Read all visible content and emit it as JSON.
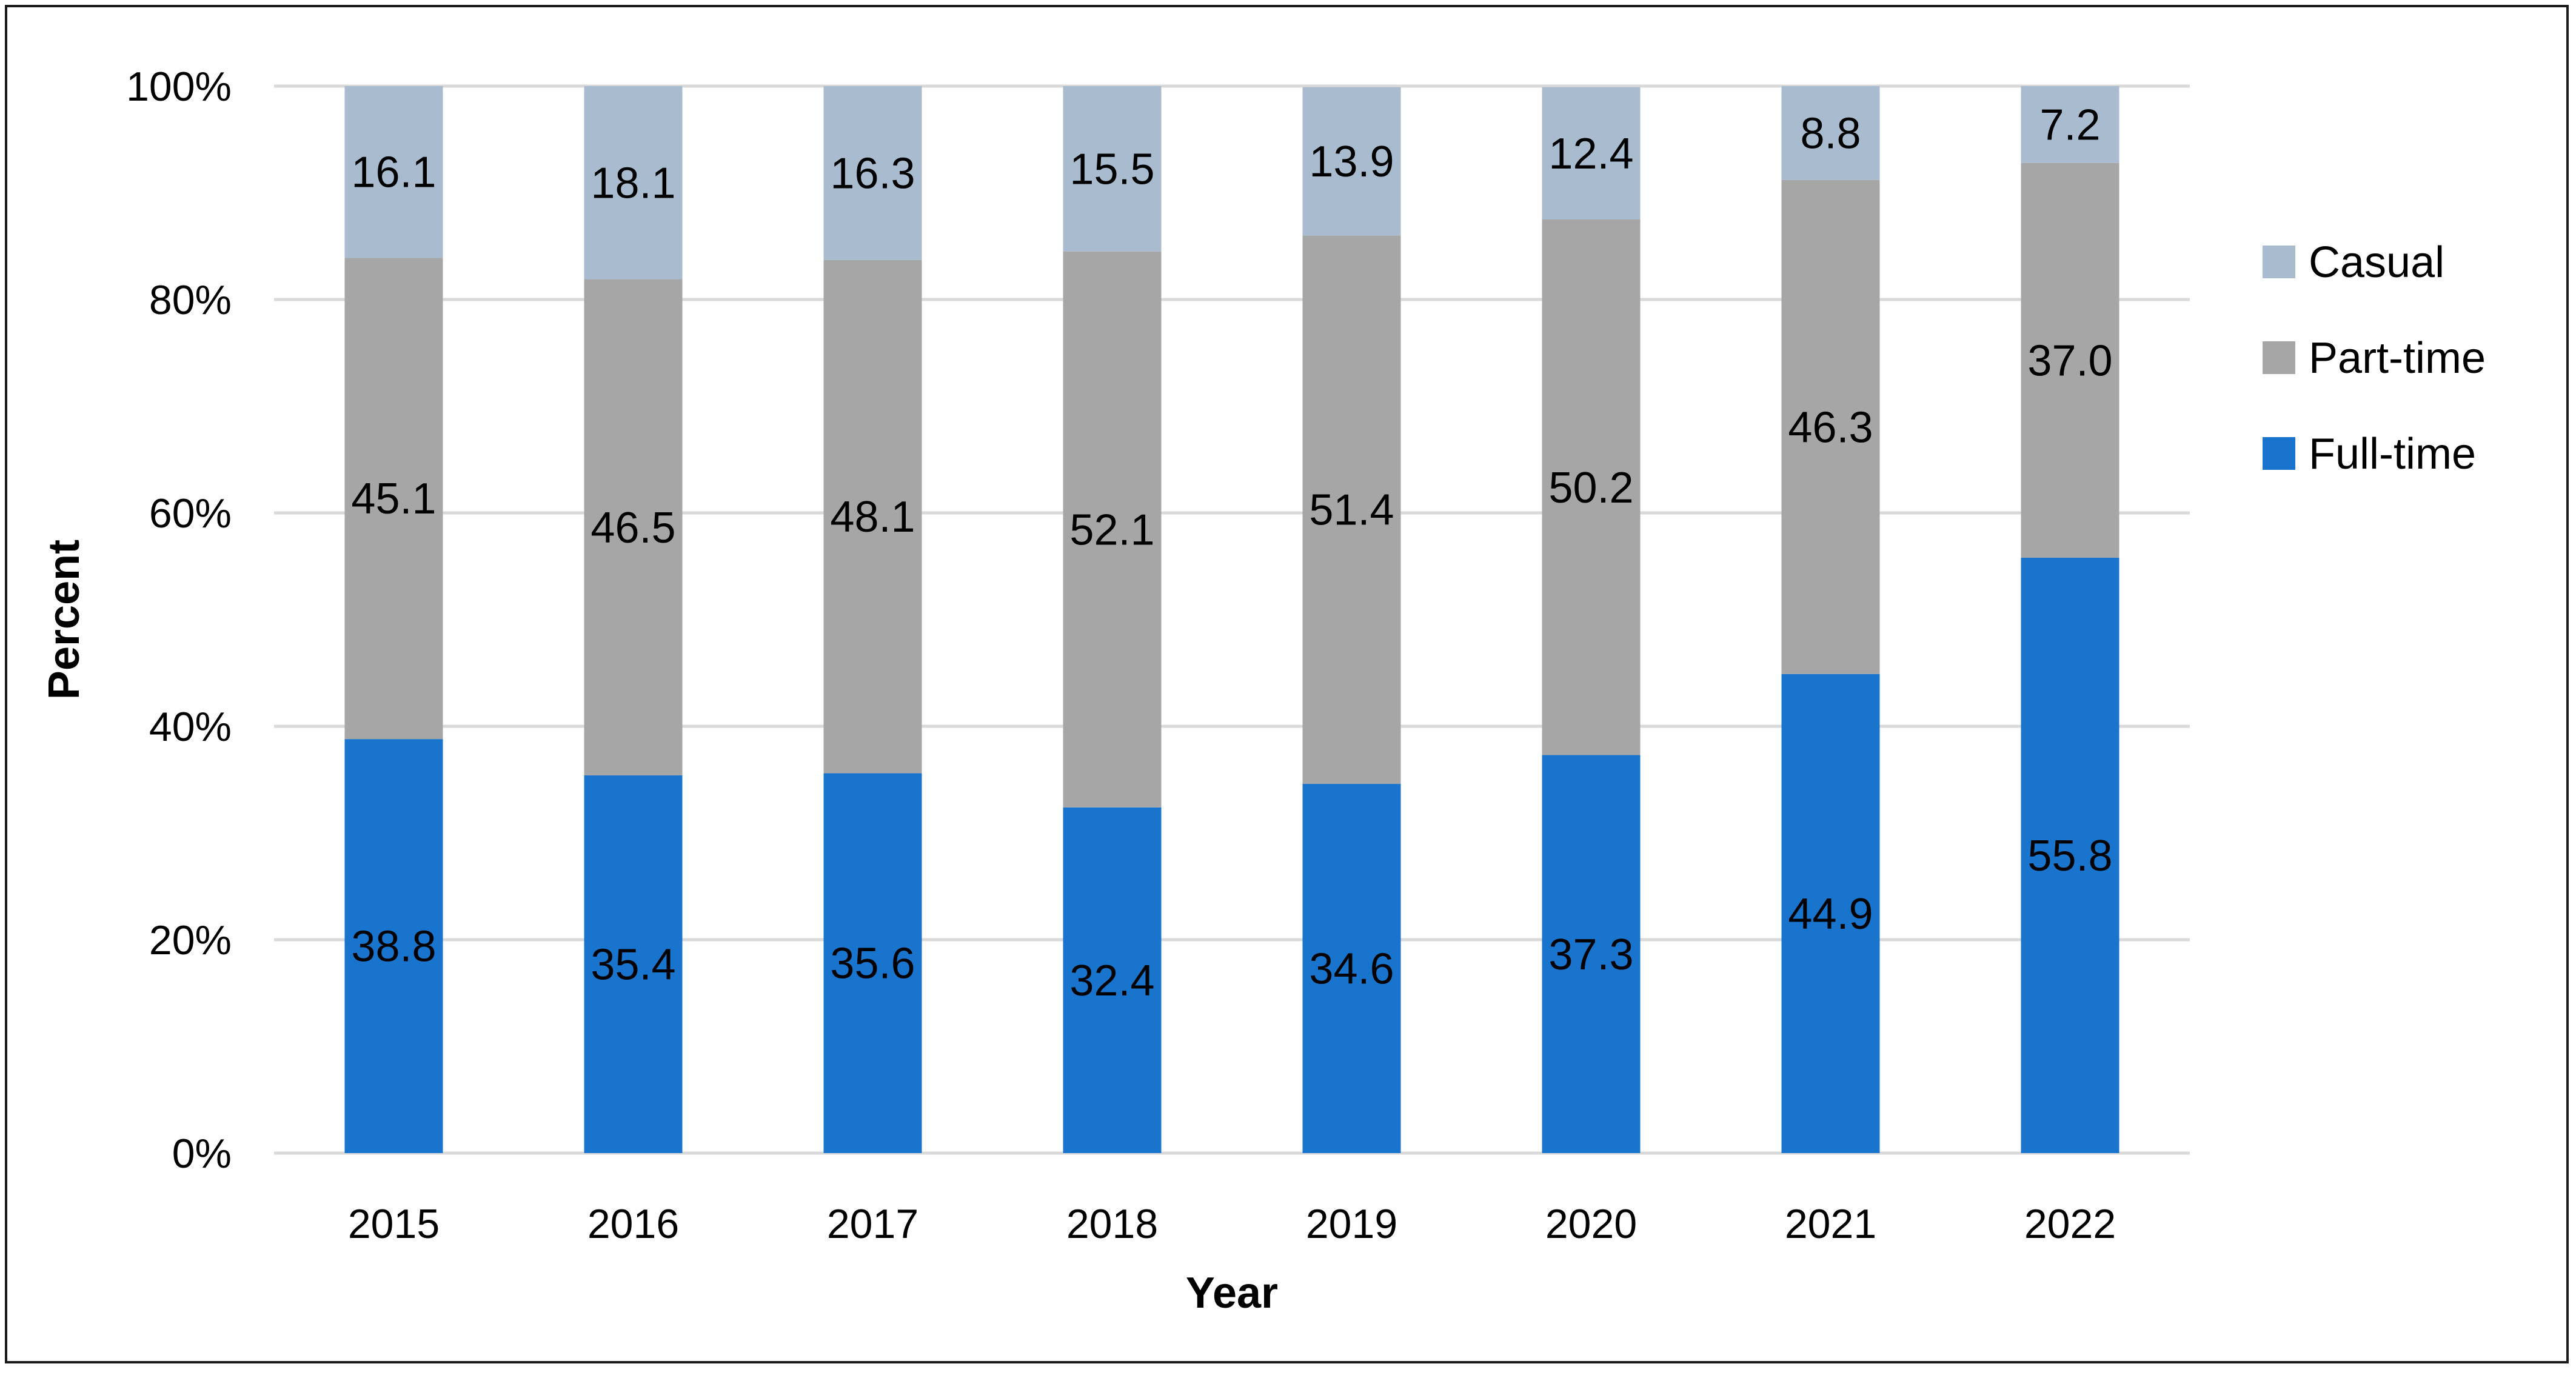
{
  "chart_data": {
    "type": "bar",
    "stacked": true,
    "title": "",
    "xlabel": "Year",
    "ylabel": "Percent",
    "ylim": [
      0,
      100
    ],
    "ytick_labels": [
      "0%",
      "20%",
      "40%",
      "60%",
      "80%",
      "100%"
    ],
    "categories": [
      "2015",
      "2016",
      "2017",
      "2018",
      "2019",
      "2020",
      "2021",
      "2022"
    ],
    "series": [
      {
        "name": "Full-time",
        "color": "#1874CD",
        "values": [
          38.8,
          35.4,
          35.6,
          32.4,
          34.6,
          37.3,
          44.9,
          55.8
        ]
      },
      {
        "name": "Part-time",
        "color": "#A6A6A6",
        "values": [
          45.1,
          46.5,
          48.1,
          52.1,
          51.4,
          50.2,
          46.3,
          37.0
        ]
      },
      {
        "name": "Casual",
        "color": "#A9BBCF",
        "values": [
          16.1,
          18.1,
          16.3,
          15.5,
          13.9,
          12.4,
          8.8,
          7.2
        ]
      }
    ],
    "legend": {
      "position": "right",
      "order": [
        "Casual",
        "Part-time",
        "Full-time"
      ]
    },
    "grid": true
  }
}
